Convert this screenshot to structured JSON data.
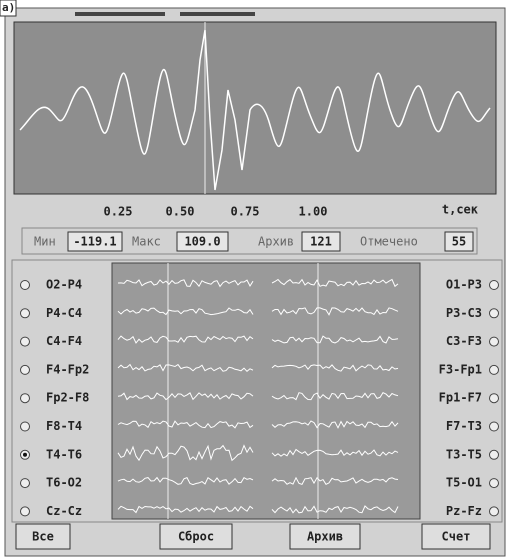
{
  "label": "a)",
  "plot": {
    "time_labels": [
      "0.25",
      "0.50",
      "0.75",
      "1.00"
    ],
    "unit": "t,сек"
  },
  "stats": [
    {
      "label": "Мин",
      "value": "-119.1"
    },
    {
      "label": "Макс",
      "value": "109.0"
    },
    {
      "label": "Архив",
      "value": "121"
    },
    {
      "label": "Отмечено",
      "value": "55"
    }
  ],
  "left_channels": [
    {
      "label": "O2-P4",
      "checked": false
    },
    {
      "label": "P4-C4",
      "checked": false
    },
    {
      "label": "C4-F4",
      "checked": false
    },
    {
      "label": "F4-Fp2",
      "checked": false
    },
    {
      "label": "Fp2-F8",
      "checked": false
    },
    {
      "label": "F8-T4",
      "checked": false
    },
    {
      "label": "T4-T6",
      "checked": true
    },
    {
      "label": "T6-O2",
      "checked": false
    },
    {
      "label": "Cz-Cz",
      "checked": false
    }
  ],
  "right_channels": [
    {
      "label": "O1-P3",
      "checked": false
    },
    {
      "label": "P3-C3",
      "checked": false
    },
    {
      "label": "C3-F3",
      "checked": false
    },
    {
      "label": "F3-Fp1",
      "checked": false
    },
    {
      "label": "Fp1-F7",
      "checked": false
    },
    {
      "label": "F7-T3",
      "checked": false
    },
    {
      "label": "T3-T5",
      "checked": false
    },
    {
      "label": "T5-O1",
      "checked": false
    },
    {
      "label": "Pz-Fz",
      "checked": false
    }
  ],
  "buttons": [
    "Все",
    "Сброс",
    "Архив",
    "Счет"
  ]
}
